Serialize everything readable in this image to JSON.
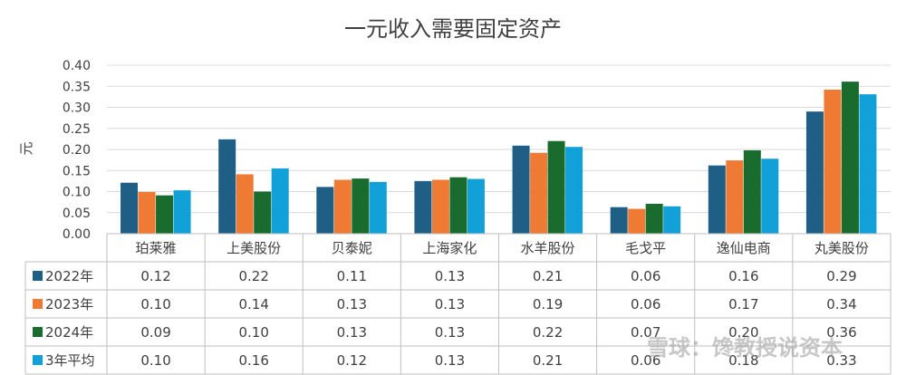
{
  "chart_data": {
    "type": "bar",
    "title": "一元收入需要固定资产",
    "ylabel": "元",
    "ylim": [
      0,
      0.4
    ],
    "yticks": [
      "0.00",
      "0.05",
      "0.10",
      "0.15",
      "0.20",
      "0.25",
      "0.30",
      "0.35",
      "0.40"
    ],
    "grid": true,
    "legend": "data-table",
    "categories": [
      "珀莱雅",
      "上美股份",
      "贝泰妮",
      "上海家化",
      "水羊股份",
      "毛戈平",
      "逸仙电商",
      "丸美股份"
    ],
    "series": [
      {
        "name": "2022年",
        "color": "#1f5f86",
        "values": [
          0.121,
          0.224,
          0.111,
          0.125,
          0.209,
          0.063,
          0.162,
          0.29
        ],
        "labels": [
          "0.12",
          "0.22",
          "0.11",
          "0.13",
          "0.21",
          "0.06",
          "0.16",
          "0.29"
        ]
      },
      {
        "name": "2023年",
        "color": "#ee7a33",
        "values": [
          0.099,
          0.141,
          0.128,
          0.128,
          0.192,
          0.059,
          0.174,
          0.342
        ],
        "labels": [
          "0.10",
          "0.14",
          "0.13",
          "0.13",
          "0.19",
          "0.06",
          "0.17",
          "0.34"
        ]
      },
      {
        "name": "2024年",
        "color": "#1a6b2e",
        "values": [
          0.091,
          0.1,
          0.131,
          0.134,
          0.22,
          0.071,
          0.198,
          0.361
        ],
        "labels": [
          "0.09",
          "0.10",
          "0.13",
          "0.13",
          "0.22",
          "0.07",
          "0.20",
          "0.36"
        ]
      },
      {
        "name": "3年平均",
        "color": "#11a0d8",
        "values": [
          0.103,
          0.155,
          0.123,
          0.13,
          0.206,
          0.065,
          0.178,
          0.331
        ],
        "labels": [
          "0.10",
          "0.16",
          "0.12",
          "0.13",
          "0.21",
          "0.06",
          "0.18",
          "0.33"
        ]
      }
    ]
  },
  "watermark": "雪球：馋教授说资本"
}
